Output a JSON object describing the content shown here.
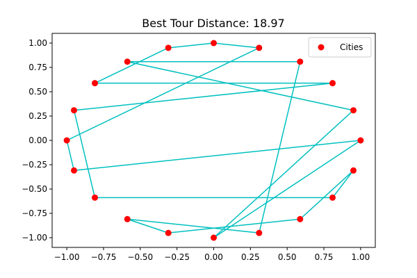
{
  "chart_data": {
    "type": "scatter",
    "title": "Best Tour Distance: 18.97",
    "xlabel": "",
    "ylabel": "",
    "xlim": [
      -1.1,
      1.1
    ],
    "ylim": [
      -1.1,
      1.1
    ],
    "xticks": [
      -1.0,
      -0.75,
      -0.5,
      -0.25,
      0.0,
      0.25,
      0.5,
      0.75,
      1.0
    ],
    "xtick_labels": [
      "−1.00",
      "−0.75",
      "−0.50",
      "−0.25",
      "0.00",
      "0.25",
      "0.50",
      "0.75",
      "1.00"
    ],
    "yticks": [
      -1.0,
      -0.75,
      -0.5,
      -0.25,
      0.0,
      0.25,
      0.5,
      0.75,
      1.0
    ],
    "ytick_labels": [
      "−1.00",
      "−0.75",
      "−0.50",
      "−0.25",
      "0.00",
      "0.25",
      "0.50",
      "0.75",
      "1.00"
    ],
    "grid": false,
    "legend": {
      "placement": "upper-right",
      "entries": [
        {
          "label": "Cities",
          "color": "#ff0000"
        }
      ]
    },
    "cities": {
      "name": "Cities",
      "color": "#ff0000",
      "points": [
        [
          1.0,
          0.0
        ],
        [
          0.951,
          0.309
        ],
        [
          0.809,
          0.588
        ],
        [
          0.588,
          0.809
        ],
        [
          0.309,
          0.951
        ],
        [
          0.0,
          1.0
        ],
        [
          -0.309,
          0.951
        ],
        [
          -0.588,
          0.809
        ],
        [
          -0.809,
          0.588
        ],
        [
          -0.951,
          0.309
        ],
        [
          -1.0,
          0.0
        ],
        [
          -0.951,
          -0.309
        ],
        [
          -0.809,
          -0.588
        ],
        [
          -0.588,
          -0.809
        ],
        [
          -0.309,
          -0.951
        ],
        [
          0.0,
          -1.0
        ],
        [
          0.309,
          -0.951
        ],
        [
          0.588,
          -0.809
        ],
        [
          0.809,
          -0.588
        ],
        [
          0.951,
          -0.309
        ]
      ]
    },
    "tour": {
      "color": "#00bfbf",
      "order": [
        0,
        11,
        10,
        4,
        5,
        6,
        8,
        2,
        9,
        12,
        18,
        19,
        17,
        14,
        13,
        16,
        3,
        7,
        1,
        15,
        0
      ]
    }
  }
}
